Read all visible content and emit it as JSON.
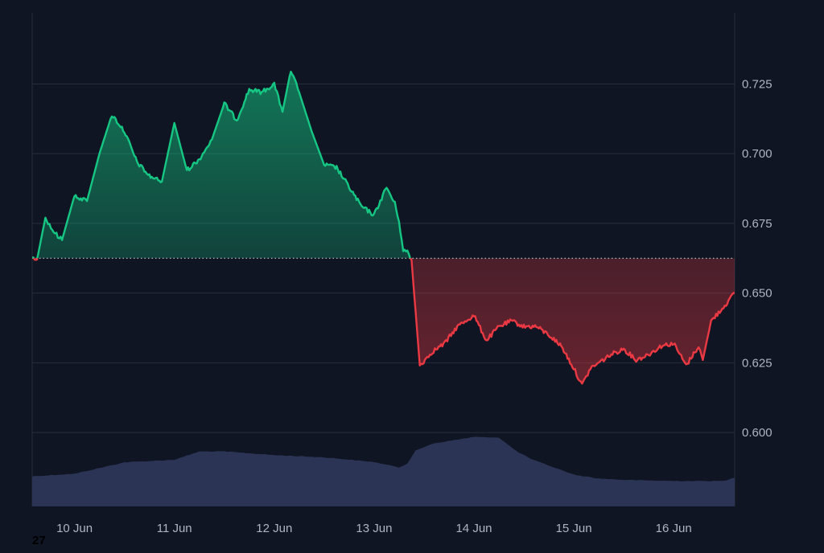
{
  "chart_data": {
    "type": "area",
    "baseline": 0.6625,
    "ylim": [
      0.5735,
      0.7505
    ],
    "y_ticks": [
      0.725,
      0.7,
      0.675,
      0.65,
      0.625,
      0.6
    ],
    "y_tick_labels": [
      "0.725",
      "0.700",
      "0.675",
      "0.650",
      "0.625",
      "0.600"
    ],
    "x_range": [
      "2024-06-09T13:50",
      "2024-06-16T14:40"
    ],
    "x_ticks": [
      "2024-06-10T00:00",
      "2024-06-11T00:00",
      "2024-06-12T00:00",
      "2024-06-13T00:00",
      "2024-06-14T00:00",
      "2024-06-15T00:00",
      "2024-06-16T00:00"
    ],
    "x_tick_labels": [
      "10 Jun",
      "11 Jun",
      "12 Jun",
      "13 Jun",
      "14 Jun",
      "15 Jun",
      "16 Jun"
    ],
    "colors": {
      "up": "#16c784",
      "down": "#ea3943",
      "volume": "#2b3455",
      "grid": "#262e3e",
      "baseline": "#c4c8d0",
      "background": "#0f1522"
    },
    "price": {
      "x": [
        "2024-06-09T13:50",
        "2024-06-09T15:00",
        "2024-06-09T17:00",
        "2024-06-09T19:00",
        "2024-06-09T21:00",
        "2024-06-10T00:00",
        "2024-06-10T03:00",
        "2024-06-10T06:00",
        "2024-06-10T09:00",
        "2024-06-10T12:00",
        "2024-06-10T15:00",
        "2024-06-10T18:00",
        "2024-06-10T21:00",
        "2024-06-11T00:00",
        "2024-06-11T03:00",
        "2024-06-11T06:00",
        "2024-06-11T09:00",
        "2024-06-11T12:00",
        "2024-06-11T15:00",
        "2024-06-11T18:00",
        "2024-06-11T21:00",
        "2024-06-12T00:00",
        "2024-06-12T02:00",
        "2024-06-12T04:00",
        "2024-06-12T06:00",
        "2024-06-12T09:00",
        "2024-06-12T12:00",
        "2024-06-12T15:00",
        "2024-06-12T18:00",
        "2024-06-12T21:00",
        "2024-06-13T00:00",
        "2024-06-13T03:00",
        "2024-06-13T05:00",
        "2024-06-13T06:00",
        "2024-06-13T07:00",
        "2024-06-13T08:00",
        "2024-06-13T09:00",
        "2024-06-13T11:00",
        "2024-06-13T14:00",
        "2024-06-13T17:00",
        "2024-06-13T20:00",
        "2024-06-14T00:00",
        "2024-06-14T03:00",
        "2024-06-14T06:00",
        "2024-06-14T09:00",
        "2024-06-14T12:00",
        "2024-06-14T15:00",
        "2024-06-14T18:00",
        "2024-06-14T21:00",
        "2024-06-15T00:00",
        "2024-06-15T02:00",
        "2024-06-15T04:00",
        "2024-06-15T06:00",
        "2024-06-15T09:00",
        "2024-06-15T12:00",
        "2024-06-15T15:00",
        "2024-06-15T18:00",
        "2024-06-15T21:00",
        "2024-06-16T00:00",
        "2024-06-16T03:00",
        "2024-06-16T06:00",
        "2024-06-16T07:00",
        "2024-06-16T09:00",
        "2024-06-16T12:00",
        "2024-06-16T14:40"
      ],
      "values": [
        0.6635,
        0.662,
        0.677,
        0.672,
        0.669,
        0.685,
        0.683,
        0.7,
        0.714,
        0.708,
        0.697,
        0.692,
        0.69,
        0.711,
        0.694,
        0.698,
        0.705,
        0.718,
        0.712,
        0.723,
        0.722,
        0.725,
        0.715,
        0.73,
        0.722,
        0.708,
        0.696,
        0.695,
        0.688,
        0.681,
        0.678,
        0.688,
        0.682,
        0.676,
        0.665,
        0.665,
        0.662,
        0.624,
        0.629,
        0.632,
        0.638,
        0.642,
        0.633,
        0.638,
        0.64,
        0.638,
        0.638,
        0.635,
        0.631,
        0.623,
        0.617,
        0.623,
        0.625,
        0.628,
        0.63,
        0.626,
        0.628,
        0.631,
        0.632,
        0.624,
        0.631,
        0.626,
        0.64,
        0.645,
        0.65
      ]
    },
    "volume": {
      "x": [
        "2024-06-09T13:50",
        "2024-06-10T00:00",
        "2024-06-10T12:00",
        "2024-06-11T00:00",
        "2024-06-11T06:00",
        "2024-06-11T12:00",
        "2024-06-12T00:00",
        "2024-06-12T12:00",
        "2024-06-13T00:00",
        "2024-06-13T06:00",
        "2024-06-13T08:00",
        "2024-06-13T10:00",
        "2024-06-13T14:00",
        "2024-06-14T00:00",
        "2024-06-14T06:00",
        "2024-06-14T10:00",
        "2024-06-14T14:00",
        "2024-06-15T00:00",
        "2024-06-15T06:00",
        "2024-06-15T12:00",
        "2024-06-16T00:00",
        "2024-06-16T12:00",
        "2024-06-16T14:40"
      ],
      "values": [
        0.5843,
        0.5852,
        0.5893,
        0.5902,
        0.5932,
        0.5932,
        0.5919,
        0.5911,
        0.5894,
        0.5875,
        0.5889,
        0.5935,
        0.596,
        0.5984,
        0.5982,
        0.5935,
        0.5903,
        0.5849,
        0.5835,
        0.583,
        0.5826,
        0.5826,
        0.5838
      ]
    }
  },
  "footer": {
    "corner_label": "27"
  }
}
